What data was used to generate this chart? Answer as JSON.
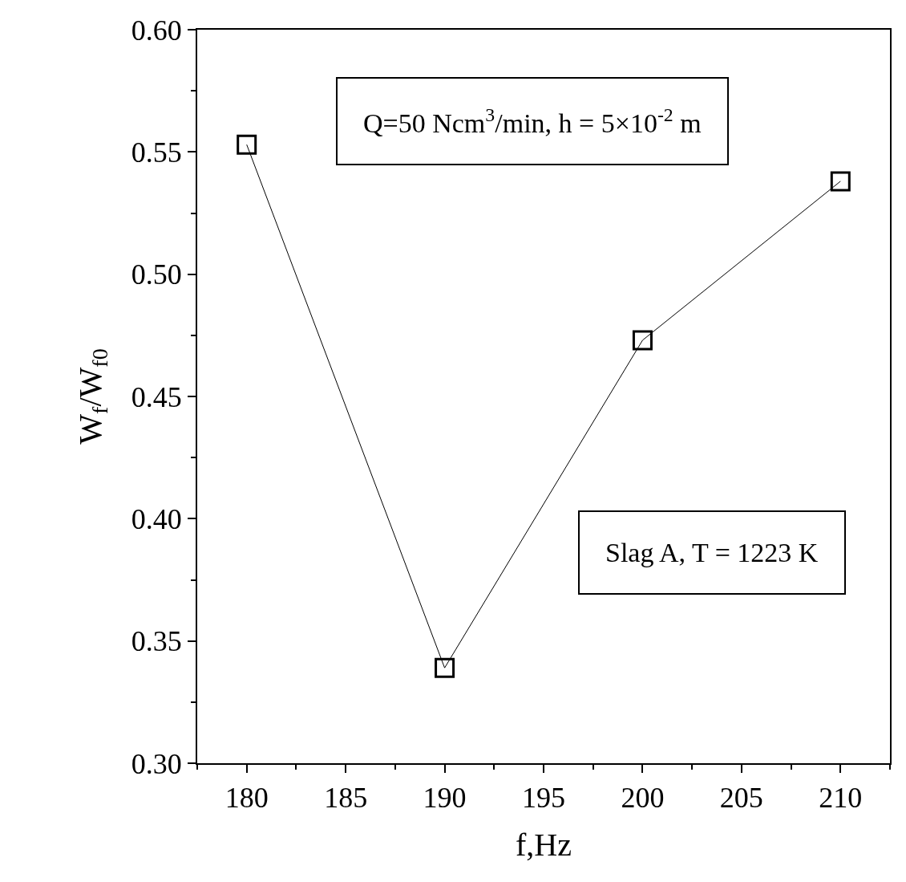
{
  "chart_data": {
    "type": "line",
    "xlabel": "f,Hz",
    "ylabel": "W$_{f}$/W$_{f0}$",
    "x": [
      180,
      190,
      200,
      210
    ],
    "series": [
      {
        "color": "#000000",
        "values": [
          0.553,
          0.339,
          0.473,
          0.538
        ]
      }
    ],
    "xlim": [
      177.5,
      212.5
    ],
    "xticks": [
      180,
      185,
      190,
      195,
      200,
      205,
      210
    ],
    "ylim": [
      0.3,
      0.6
    ],
    "yticks": [
      {
        "value": 0.3,
        "label": "0.30"
      },
      {
        "value": 0.35,
        "label": "0.35"
      },
      {
        "value": 0.4,
        "label": "0.40"
      },
      {
        "value": 0.45,
        "label": "0.45"
      },
      {
        "value": 0.5,
        "label": "0.50"
      },
      {
        "value": 0.55,
        "label": "0.55"
      },
      {
        "value": 0.6,
        "label": "0.60"
      }
    ],
    "marker": "square",
    "line_style": "solid",
    "annotations": [
      "Q=50 Ncm$^{3}$/min, h = 5×10$^{-2}$ m",
      "Slag A, T = 1223 K"
    ]
  }
}
